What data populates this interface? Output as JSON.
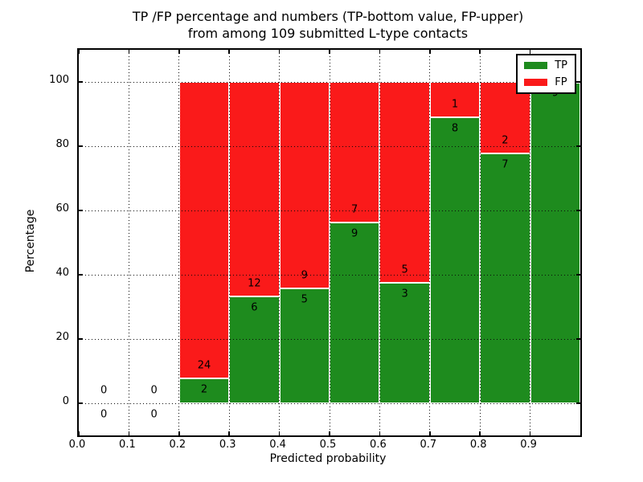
{
  "chart_data": {
    "type": "bar",
    "stacked": true,
    "title_line1": "TP /FP percentage and numbers (TP-bottom value, FP-upper)",
    "title_line2": "from among 109 submitted L-type contacts",
    "title": "TP /FP percentage and numbers (TP-bottom value, FP-upper) from among 109 submitted L-type contacts",
    "xlabel": "Predicted probability",
    "ylabel": "Percentage",
    "xlim": [
      0.0,
      1.0
    ],
    "ylim": [
      -10,
      110
    ],
    "xticks": [
      "0.0",
      "0.1",
      "0.2",
      "0.3",
      "0.4",
      "0.5",
      "0.6",
      "0.7",
      "0.8",
      "0.9"
    ],
    "xtick_values": [
      0.0,
      0.1,
      0.2,
      0.3,
      0.4,
      0.5,
      0.6,
      0.7,
      0.8,
      0.9
    ],
    "yticks": [
      "0",
      "20",
      "40",
      "60",
      "80",
      "100"
    ],
    "ytick_values": [
      0,
      20,
      40,
      60,
      80,
      100
    ],
    "grid": true,
    "grid_style": "dotted",
    "legend_position": "upper right",
    "total_contacts": 109,
    "series": [
      {
        "name": "TP",
        "color": "#1e8b1e"
      },
      {
        "name": "FP",
        "color": "#fa1a1a"
      }
    ],
    "bar_edge_color": "#ffffff",
    "bins": [
      {
        "range": [
          0.0,
          0.1
        ],
        "tp": 0,
        "fp": 0,
        "tp_pct": 0
      },
      {
        "range": [
          0.1,
          0.2
        ],
        "tp": 0,
        "fp": 0,
        "tp_pct": 0
      },
      {
        "range": [
          0.2,
          0.3
        ],
        "tp": 2,
        "fp": 24,
        "tp_pct": 7.69
      },
      {
        "range": [
          0.3,
          0.4
        ],
        "tp": 6,
        "fp": 12,
        "tp_pct": 33.33
      },
      {
        "range": [
          0.4,
          0.5
        ],
        "tp": 5,
        "fp": 9,
        "tp_pct": 35.71
      },
      {
        "range": [
          0.5,
          0.6
        ],
        "tp": 9,
        "fp": 7,
        "tp_pct": 56.25
      },
      {
        "range": [
          0.6,
          0.7
        ],
        "tp": 3,
        "fp": 5,
        "tp_pct": 37.5
      },
      {
        "range": [
          0.7,
          0.8
        ],
        "tp": 8,
        "fp": 1,
        "tp_pct": 88.89
      },
      {
        "range": [
          0.8,
          0.9
        ],
        "tp": 7,
        "fp": 2,
        "tp_pct": 77.78
      },
      {
        "range": [
          0.9,
          1.0
        ],
        "tp": 9,
        "fp": 0,
        "tp_pct": 100
      }
    ]
  }
}
